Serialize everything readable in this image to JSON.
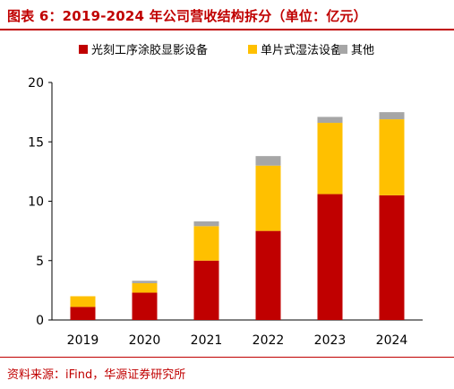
{
  "title": "图表 6：2019-2024 年公司营收结构拆分（单位：亿元）",
  "source": "资料来源：iFind，华源证券研究所",
  "chart_data": {
    "type": "bar",
    "stacked": true,
    "categories": [
      "2019",
      "2020",
      "2021",
      "2022",
      "2023",
      "2024"
    ],
    "series": [
      {
        "name": "光刻工序涂胶显影设备",
        "color": "#c00000",
        "values": [
          1.1,
          2.3,
          5.0,
          7.5,
          10.6,
          10.5
        ]
      },
      {
        "name": "单片式湿法设备",
        "color": "#ffc000",
        "values": [
          0.9,
          0.8,
          2.9,
          5.5,
          6.0,
          6.4
        ]
      },
      {
        "name": "其他",
        "color": "#a6a6a6",
        "values": [
          0.0,
          0.2,
          0.4,
          0.8,
          0.5,
          0.6
        ]
      }
    ],
    "ylim": [
      0,
      20
    ],
    "yticks": [
      0,
      5,
      10,
      15,
      20
    ],
    "grid": false,
    "legend": "top"
  }
}
